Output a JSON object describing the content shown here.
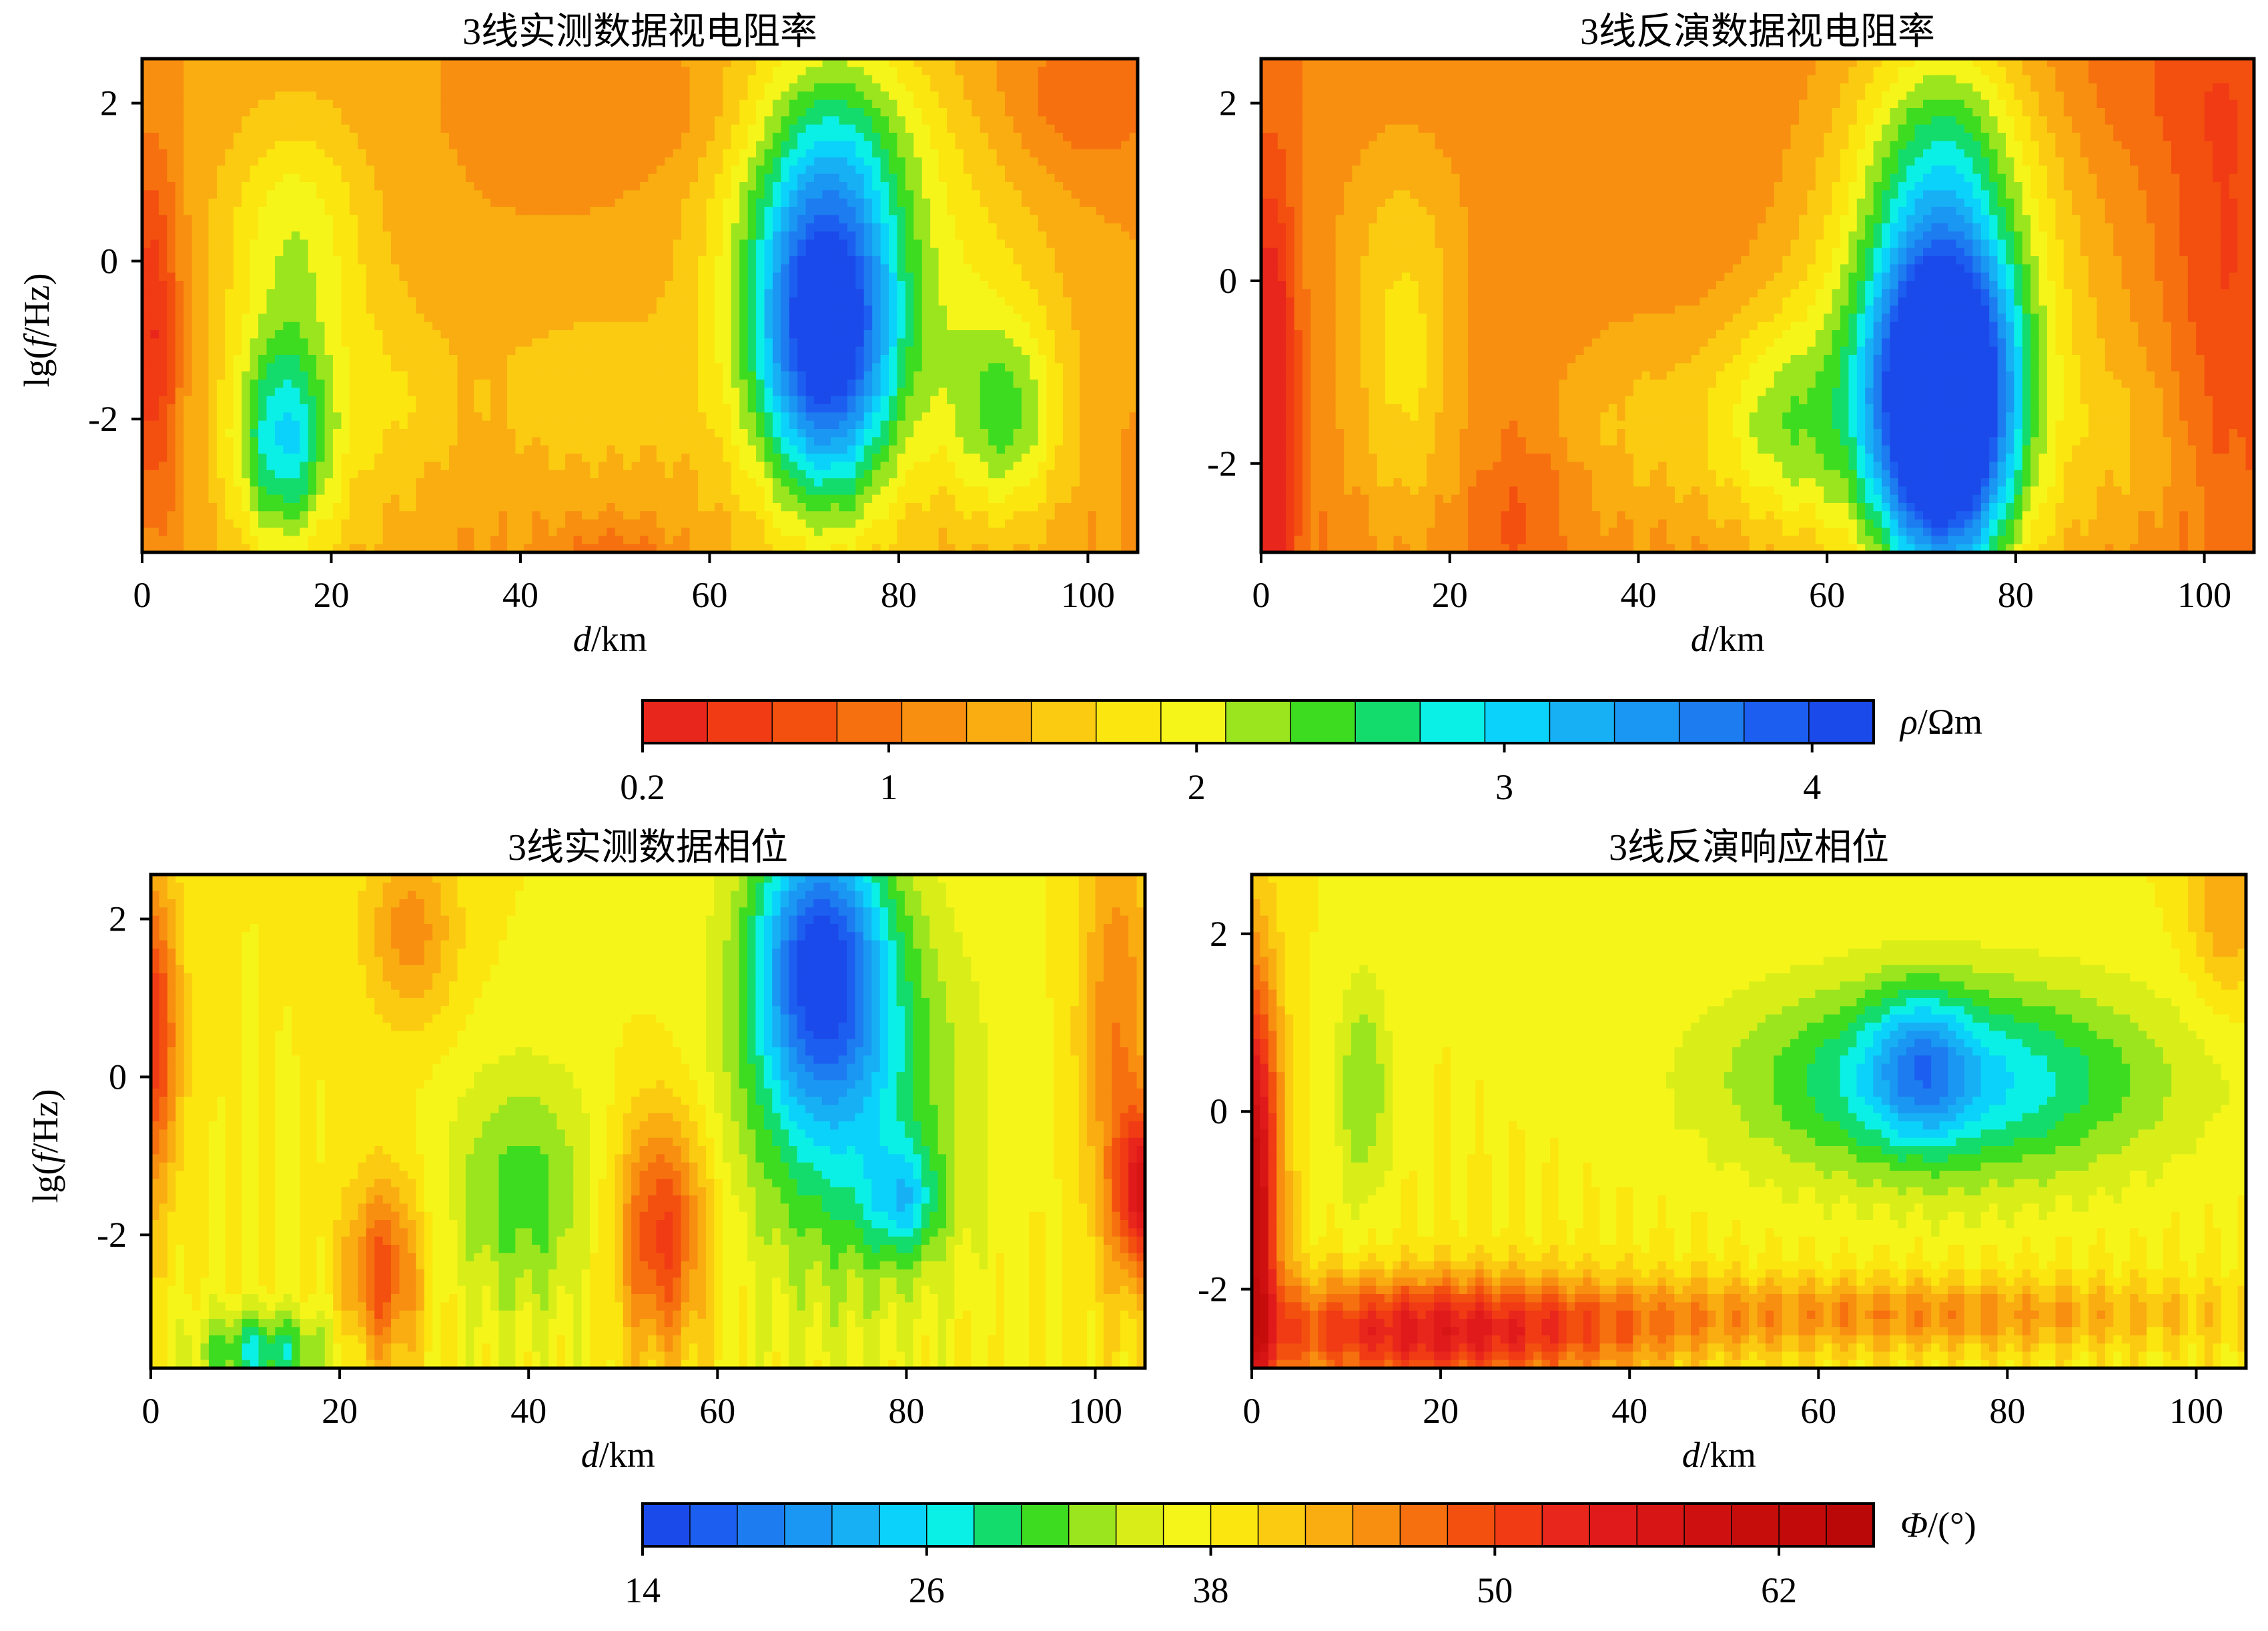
{
  "chart_data": [
    {
      "type": "heatmap",
      "title": "3线实测数据视电阻率",
      "xlabel": {
        "var": "d",
        "unit": "/km"
      },
      "ylabel": {
        "pre": "lg(",
        "var": "f",
        "post": "/Hz)"
      },
      "xlim": [
        0,
        106
      ],
      "ylim": [
        -3.7,
        2.5
      ],
      "x_ticks": [
        "0",
        "20",
        "40",
        "60",
        "80",
        "100"
      ],
      "y_ticks": [
        "2",
        "0",
        "-2"
      ],
      "colorbar": "resistivity",
      "features": [
        {
          "x": 73,
          "y": -1.0,
          "sx": 7,
          "sy": 2.0,
          "v": 2.1
        },
        {
          "x": 72,
          "y": -0.2,
          "sx": 11,
          "sy": 2.8,
          "v": 1.3
        },
        {
          "x": 75,
          "y": 1.6,
          "sx": 9,
          "sy": 1.2,
          "v": 0.4
        },
        {
          "x": 15,
          "y": -2.3,
          "sx": 5,
          "sy": 1.3,
          "v": 1.3
        },
        {
          "x": 16,
          "y": 0.4,
          "sx": 7,
          "sy": 1.4,
          "v": 0.5
        },
        {
          "x": 17,
          "y": -1.5,
          "sx": 10,
          "sy": 2.8,
          "v": 0.5
        },
        {
          "x": 28,
          "y": -1.8,
          "sx": 6,
          "sy": 1.2,
          "v": 0.25
        },
        {
          "x": 47,
          "y": -1.7,
          "sx": 12,
          "sy": 1.2,
          "v": 0.35
        },
        {
          "x": 92,
          "y": -2.0,
          "sx": 6,
          "sy": 1.3,
          "v": 0.9
        },
        {
          "x": 88,
          "y": -0.5,
          "sx": 10,
          "sy": 2.5,
          "v": 0.4
        },
        {
          "x": 1,
          "y": -1.0,
          "sx": 3,
          "sy": 2.2,
          "v": -0.9
        },
        {
          "x": 100,
          "y": 2.0,
          "sx": 9,
          "sy": 1.0,
          "v": -0.4
        },
        {
          "x": 55,
          "y": 1.8,
          "sx": 14,
          "sy": 0.8,
          "v": -0.2
        },
        {
          "x": 50,
          "y": -3.7,
          "sx": 6,
          "sy": 0.4,
          "v": -0.35
        }
      ],
      "base": 1.25
    },
    {
      "type": "heatmap",
      "title": "3线反演数据视电阻率",
      "xlabel": {
        "var": "d",
        "unit": "/km"
      },
      "ylabel": null,
      "xlim": [
        0,
        105
      ],
      "ylim": [
        -3.0,
        2.5
      ],
      "x_ticks": [
        "0",
        "20",
        "40",
        "60",
        "80",
        "100"
      ],
      "y_ticks": [
        "2",
        "0",
        "-2"
      ],
      "colorbar": "resistivity",
      "features": [
        {
          "x": 72,
          "y": -1.4,
          "sx": 7,
          "sy": 1.8,
          "v": 3.4
        },
        {
          "x": 72,
          "y": -0.6,
          "sx": 13,
          "sy": 2.8,
          "v": 1.6
        },
        {
          "x": 72,
          "y": 1.7,
          "sx": 8,
          "sy": 1.2,
          "v": 0.6
        },
        {
          "x": 55,
          "y": -1.6,
          "sx": 8,
          "sy": 1.3,
          "v": 0.9
        },
        {
          "x": 15,
          "y": -1.2,
          "sx": 6,
          "sy": 1.8,
          "v": 0.6
        },
        {
          "x": 15,
          "y": 0.6,
          "sx": 8,
          "sy": 1.5,
          "v": 0.3
        },
        {
          "x": 40,
          "y": -1.6,
          "sx": 10,
          "sy": 1.3,
          "v": 0.45
        },
        {
          "x": 28,
          "y": -2.6,
          "sx": 5,
          "sy": 0.9,
          "v": -0.3
        },
        {
          "x": 92,
          "y": -1.8,
          "sx": 8,
          "sy": 1.3,
          "v": 0.3
        },
        {
          "x": 1,
          "y": -1.5,
          "sx": 2.5,
          "sy": 2.5,
          "v": -1.2
        },
        {
          "x": 102,
          "y": 0.2,
          "sx": 6,
          "sy": 3.0,
          "v": -0.45
        },
        {
          "x": 95,
          "y": 2.2,
          "sx": 12,
          "sy": 0.9,
          "v": -0.2
        }
      ],
      "base": 1.05
    },
    {
      "type": "heatmap",
      "title": "3线实测数据相位",
      "xlabel": {
        "var": "d",
        "unit": "/km"
      },
      "ylabel": {
        "pre": "lg(",
        "var": "f",
        "post": "/Hz)"
      },
      "xlim": [
        0,
        107
      ],
      "ylim": [
        -3.7,
        2.5
      ],
      "x_ticks": [
        "0",
        "20",
        "40",
        "60",
        "80",
        "100"
      ],
      "y_ticks": [
        "2",
        "0",
        "-2"
      ],
      "colorbar": "phase",
      "features": [
        {
          "x": 72,
          "y": 1.5,
          "sx": 7,
          "sy": 1.8,
          "v": -19
        },
        {
          "x": 75,
          "y": -0.3,
          "sx": 12,
          "sy": 2.5,
          "v": -10
        },
        {
          "x": 81,
          "y": -1.6,
          "sx": 4,
          "sy": 0.7,
          "v": -8
        },
        {
          "x": 40,
          "y": -1.5,
          "sx": 8,
          "sy": 1.6,
          "v": -7
        },
        {
          "x": 12,
          "y": -3.5,
          "sx": 7,
          "sy": 0.5,
          "v": -10
        },
        {
          "x": 55,
          "y": -2.0,
          "sx": 5,
          "sy": 1.5,
          "v": 13
        },
        {
          "x": 25,
          "y": -2.5,
          "sx": 4,
          "sy": 1.2,
          "v": 11
        },
        {
          "x": 28,
          "y": 1.8,
          "sx": 5,
          "sy": 1.2,
          "v": 7
        },
        {
          "x": 0,
          "y": 0.5,
          "sx": 3,
          "sy": 2.0,
          "v": 14
        },
        {
          "x": 107,
          "y": -1.5,
          "sx": 3,
          "sy": 1.0,
          "v": 16
        },
        {
          "x": 104,
          "y": 0.5,
          "sx": 4,
          "sy": 3.0,
          "v": 8
        }
      ],
      "base": 38
    },
    {
      "type": "heatmap",
      "title": "3线反演响应相位",
      "xlabel": {
        "var": "d",
        "unit": "/km"
      },
      "ylabel": null,
      "xlim": [
        0,
        107
      ],
      "ylim": [
        -2.9,
        2.6
      ],
      "x_ticks": [
        "0",
        "20",
        "40",
        "60",
        "80",
        "100"
      ],
      "y_ticks": [
        "2",
        "0",
        "-2"
      ],
      "colorbar": "phase",
      "features": [
        {
          "x": 75,
          "y": 0.3,
          "sx": 22,
          "sy": 1.1,
          "v": -13
        },
        {
          "x": 72,
          "y": 0.5,
          "sx": 5,
          "sy": 0.8,
          "v": -8
        },
        {
          "x": 12,
          "y": 0.2,
          "sx": 3,
          "sy": 1.3,
          "v": -6
        },
        {
          "x": 20,
          "y": -2.5,
          "sx": 22,
          "sy": 0.6,
          "v": 16
        },
        {
          "x": 0,
          "y": -1.0,
          "sx": 3,
          "sy": 2.5,
          "v": 24
        },
        {
          "x": 70,
          "y": -2.3,
          "sx": 35,
          "sy": 0.4,
          "v": 7
        },
        {
          "x": 105,
          "y": 2.2,
          "sx": 4,
          "sy": 1.0,
          "v": 6
        }
      ],
      "base": 38
    }
  ],
  "colorbars": {
    "resistivity": {
      "label": {
        "var": "ρ",
        "unit": "/Ωm"
      },
      "tick_labels": [
        "0.2",
        "1",
        "2",
        "3",
        "4"
      ],
      "tick_values": [
        0.2,
        1,
        2,
        3,
        4
      ],
      "range": [
        0.2,
        4.2
      ],
      "colors": [
        "#e8261c",
        "#f03b14",
        "#f35010",
        "#f6700f",
        "#f88f10",
        "#f9ad11",
        "#fbcb12",
        "#fbe60f",
        "#f6f51a",
        "#9be51f",
        "#3edc20",
        "#13dc6d",
        "#0bf0e6",
        "#0bd2fa",
        "#17b0f5",
        "#1a96f3",
        "#1c7cf0",
        "#1c5ff0",
        "#1b4aeb"
      ]
    },
    "phase": {
      "label": {
        "var": "Φ",
        "unit": "/(°)"
      },
      "tick_labels": [
        "14",
        "26",
        "38",
        "50",
        "62"
      ],
      "tick_values": [
        14,
        26,
        38,
        50,
        62
      ],
      "range": [
        14,
        66
      ],
      "colors": [
        "#1b4aeb",
        "#1c5ff0",
        "#1c7cf0",
        "#1a96f3",
        "#17b0f5",
        "#0bd2fa",
        "#0bf0e6",
        "#13dc6d",
        "#3edc20",
        "#9be51f",
        "#d9ee18",
        "#f6f51a",
        "#fbe60f",
        "#fbcb12",
        "#f9ad11",
        "#f88f10",
        "#f6700f",
        "#f35010",
        "#f03b14",
        "#e8261c",
        "#e01a1a",
        "#d81515",
        "#cf1010",
        "#c70c0c",
        "#c20a0a",
        "#ba0808"
      ]
    }
  }
}
